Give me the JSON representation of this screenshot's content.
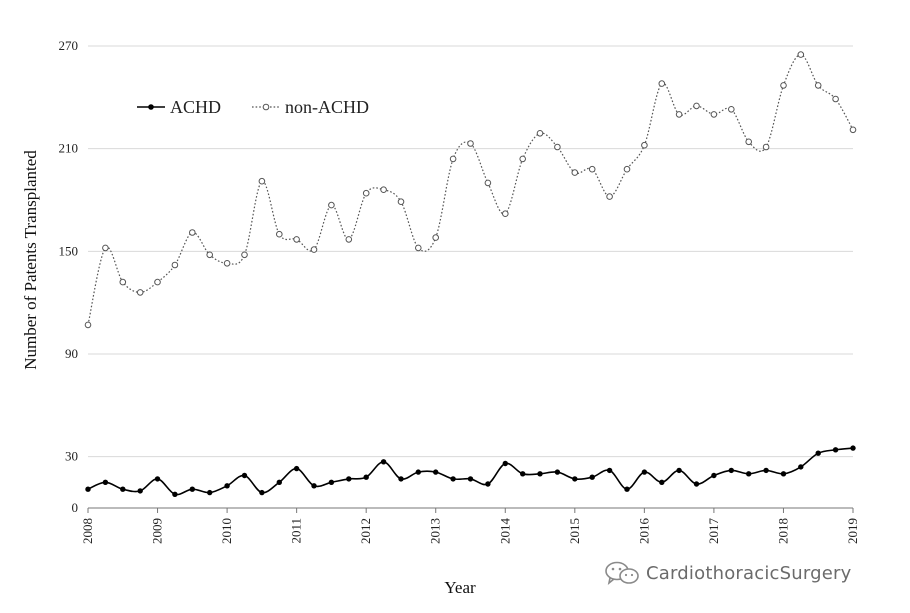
{
  "chart_data": {
    "type": "line",
    "title": "",
    "xlabel": "Year",
    "ylabel": "Number of Patents Transplanted",
    "xlim": [
      2008,
      2019
    ],
    "ylim": [
      0,
      270
    ],
    "x_ticks": [
      "2008",
      "2009",
      "2010",
      "2011",
      "2012",
      "2013",
      "2014",
      "2015",
      "2016",
      "2017",
      "2018",
      "2019"
    ],
    "y_ticks": [
      "0",
      "30",
      "90",
      "150",
      "210",
      "270"
    ],
    "grid": "horizontal",
    "legend_position": "top-left",
    "series": [
      {
        "name": "ACHD",
        "marker": "filled-circle",
        "line_style": "solid",
        "color": "#000000",
        "x": [
          2008.0,
          2008.25,
          2008.5,
          2008.75,
          2009.0,
          2009.25,
          2009.5,
          2009.75,
          2010.0,
          2010.25,
          2010.5,
          2010.75,
          2011.0,
          2011.25,
          2011.5,
          2011.75,
          2012.0,
          2012.25,
          2012.5,
          2012.75,
          2013.0,
          2013.25,
          2013.5,
          2013.75,
          2014.0,
          2014.25,
          2014.5,
          2014.75,
          2015.0,
          2015.25,
          2015.5,
          2015.75,
          2016.0,
          2016.25,
          2016.5,
          2016.75,
          2017.0,
          2017.25,
          2017.5,
          2017.75,
          2018.0,
          2018.25,
          2018.5,
          2018.75,
          2019.0
        ],
        "y": [
          11,
          15,
          11,
          10,
          17,
          8,
          11,
          9,
          13,
          19,
          9,
          15,
          23,
          13,
          15,
          17,
          18,
          27,
          17,
          21,
          21,
          17,
          17,
          14,
          26,
          20,
          20,
          21,
          17,
          18,
          22,
          11,
          21,
          15,
          22,
          14,
          19,
          22,
          20,
          22,
          20,
          24,
          32,
          34,
          35
        ]
      },
      {
        "name": "non-ACHD",
        "marker": "open-circle",
        "line_style": "dotted",
        "color": "#555555",
        "x": [
          2008.0,
          2008.25,
          2008.5,
          2008.75,
          2009.0,
          2009.25,
          2009.5,
          2009.75,
          2010.0,
          2010.25,
          2010.5,
          2010.75,
          2011.0,
          2011.25,
          2011.5,
          2011.75,
          2012.0,
          2012.25,
          2012.5,
          2012.75,
          2013.0,
          2013.25,
          2013.5,
          2013.75,
          2014.0,
          2014.25,
          2014.5,
          2014.75,
          2015.0,
          2015.25,
          2015.5,
          2015.75,
          2016.0,
          2016.25,
          2016.5,
          2016.75,
          2017.0,
          2017.25,
          2017.5,
          2017.75,
          2018.0,
          2018.25,
          2018.5,
          2018.75,
          2019.0
        ],
        "y": [
          107,
          152,
          132,
          126,
          132,
          142,
          161,
          148,
          143,
          148,
          191,
          160,
          157,
          151,
          177,
          157,
          184,
          186,
          179,
          152,
          158,
          204,
          213,
          190,
          172,
          204,
          219,
          211,
          196,
          198,
          182,
          198,
          212,
          248,
          230,
          235,
          230,
          233,
          214,
          211,
          247,
          265,
          247,
          239,
          221
        ]
      }
    ]
  },
  "watermark": {
    "text": "CardiothoracicSurgery",
    "icon": "wechat-icon"
  }
}
